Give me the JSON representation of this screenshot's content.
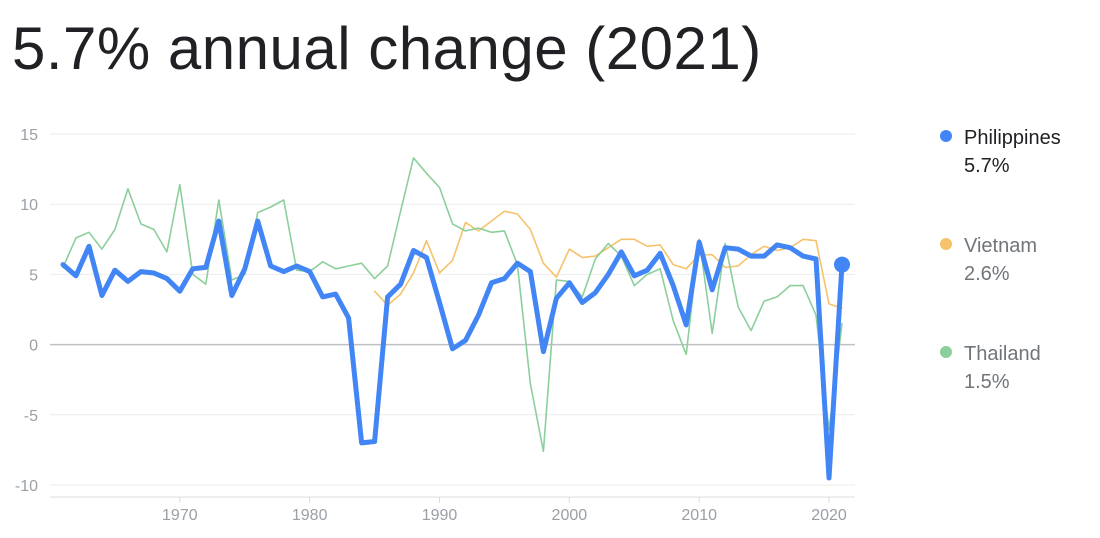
{
  "headline": "5.7% annual change (2021)",
  "chart_data": {
    "type": "line",
    "title": "",
    "xlabel": "",
    "ylabel": "",
    "xlim": [
      1960,
      2022
    ],
    "ylim": [
      -10,
      15
    ],
    "yticks": [
      15,
      10,
      5,
      0,
      -5,
      -10
    ],
    "ytick_labels": [
      "15",
      "10",
      "5",
      "0",
      "-5",
      "-10"
    ],
    "xticks": [
      1970,
      1980,
      1990,
      2000,
      2010,
      2020
    ],
    "xtick_labels": [
      "1970",
      "1980",
      "1990",
      "2000",
      "2010",
      "2020"
    ],
    "grid": true,
    "legend_position": "right",
    "series": [
      {
        "name": "Philippines",
        "legend_value": "5.7%",
        "color": "#4285f4",
        "emphasis": true,
        "x": [
          1961,
          1962,
          1963,
          1964,
          1965,
          1966,
          1967,
          1968,
          1969,
          1970,
          1971,
          1972,
          1973,
          1974,
          1975,
          1976,
          1977,
          1978,
          1979,
          1980,
          1981,
          1982,
          1983,
          1984,
          1985,
          1986,
          1987,
          1988,
          1989,
          1990,
          1991,
          1992,
          1993,
          1994,
          1995,
          1996,
          1997,
          1998,
          1999,
          2000,
          2001,
          2002,
          2003,
          2004,
          2005,
          2006,
          2007,
          2008,
          2009,
          2010,
          2011,
          2012,
          2013,
          2014,
          2015,
          2016,
          2017,
          2018,
          2019,
          2020,
          2021
        ],
        "y": [
          5.7,
          4.9,
          7.0,
          3.5,
          5.3,
          4.5,
          5.2,
          5.1,
          4.7,
          3.8,
          5.4,
          5.5,
          8.8,
          3.5,
          5.4,
          8.8,
          5.6,
          5.2,
          5.6,
          5.2,
          3.4,
          3.6,
          1.9,
          -7.0,
          -6.9,
          3.4,
          4.3,
          6.7,
          6.2,
          3.0,
          -0.3,
          0.3,
          2.1,
          4.4,
          4.7,
          5.8,
          5.2,
          -0.5,
          3.3,
          4.4,
          3.0,
          3.7,
          5.0,
          6.6,
          4.9,
          5.3,
          6.5,
          4.2,
          1.4,
          7.3,
          3.9,
          6.9,
          6.8,
          6.3,
          6.3,
          7.1,
          6.9,
          6.3,
          6.1,
          -9.5,
          5.7
        ]
      },
      {
        "name": "Vietnam",
        "legend_value": "2.6%",
        "color": "#f6c26b",
        "emphasis": false,
        "x": [
          1985,
          1986,
          1987,
          1988,
          1989,
          1990,
          1991,
          1992,
          1993,
          1994,
          1995,
          1996,
          1997,
          1998,
          1999,
          2000,
          2001,
          2002,
          2003,
          2004,
          2005,
          2006,
          2007,
          2008,
          2009,
          2010,
          2011,
          2012,
          2013,
          2014,
          2015,
          2016,
          2017,
          2018,
          2019,
          2020,
          2021
        ],
        "y": [
          3.8,
          2.8,
          3.6,
          5.1,
          7.4,
          5.1,
          6.0,
          8.7,
          8.1,
          8.8,
          9.5,
          9.3,
          8.2,
          5.8,
          4.8,
          6.8,
          6.2,
          6.3,
          6.9,
          7.5,
          7.5,
          7.0,
          7.1,
          5.7,
          5.4,
          6.4,
          6.4,
          5.5,
          5.6,
          6.4,
          7.0,
          6.7,
          6.9,
          7.5,
          7.4,
          2.9,
          2.6
        ]
      },
      {
        "name": "Thailand",
        "legend_value": "1.5%",
        "color": "#8ccf9b",
        "emphasis": false,
        "x": [
          1961,
          1962,
          1963,
          1964,
          1965,
          1966,
          1967,
          1968,
          1969,
          1970,
          1971,
          1972,
          1973,
          1974,
          1975,
          1976,
          1977,
          1978,
          1979,
          1980,
          1981,
          1982,
          1983,
          1984,
          1985,
          1986,
          1987,
          1988,
          1989,
          1990,
          1991,
          1992,
          1993,
          1994,
          1995,
          1996,
          1997,
          1998,
          1999,
          2000,
          2001,
          2002,
          2003,
          2004,
          2005,
          2006,
          2007,
          2008,
          2009,
          2010,
          2011,
          2012,
          2013,
          2014,
          2015,
          2016,
          2017,
          2018,
          2019,
          2020,
          2021
        ],
        "y": [
          5.5,
          7.6,
          8.0,
          6.8,
          8.2,
          11.1,
          8.6,
          8.2,
          6.6,
          11.4,
          5.0,
          4.3,
          10.3,
          4.6,
          5.0,
          9.4,
          9.8,
          10.3,
          5.3,
          5.2,
          5.9,
          5.4,
          5.6,
          5.8,
          4.7,
          5.6,
          9.5,
          13.3,
          12.2,
          11.2,
          8.6,
          8.1,
          8.3,
          8.0,
          8.1,
          5.7,
          -2.8,
          -7.6,
          4.6,
          4.5,
          3.4,
          6.1,
          7.2,
          6.3,
          4.2,
          5.0,
          5.4,
          1.7,
          -0.7,
          7.5,
          0.8,
          7.2,
          2.7,
          1.0,
          3.1,
          3.4,
          4.2,
          4.2,
          2.1,
          -6.1,
          1.5
        ]
      }
    ]
  }
}
